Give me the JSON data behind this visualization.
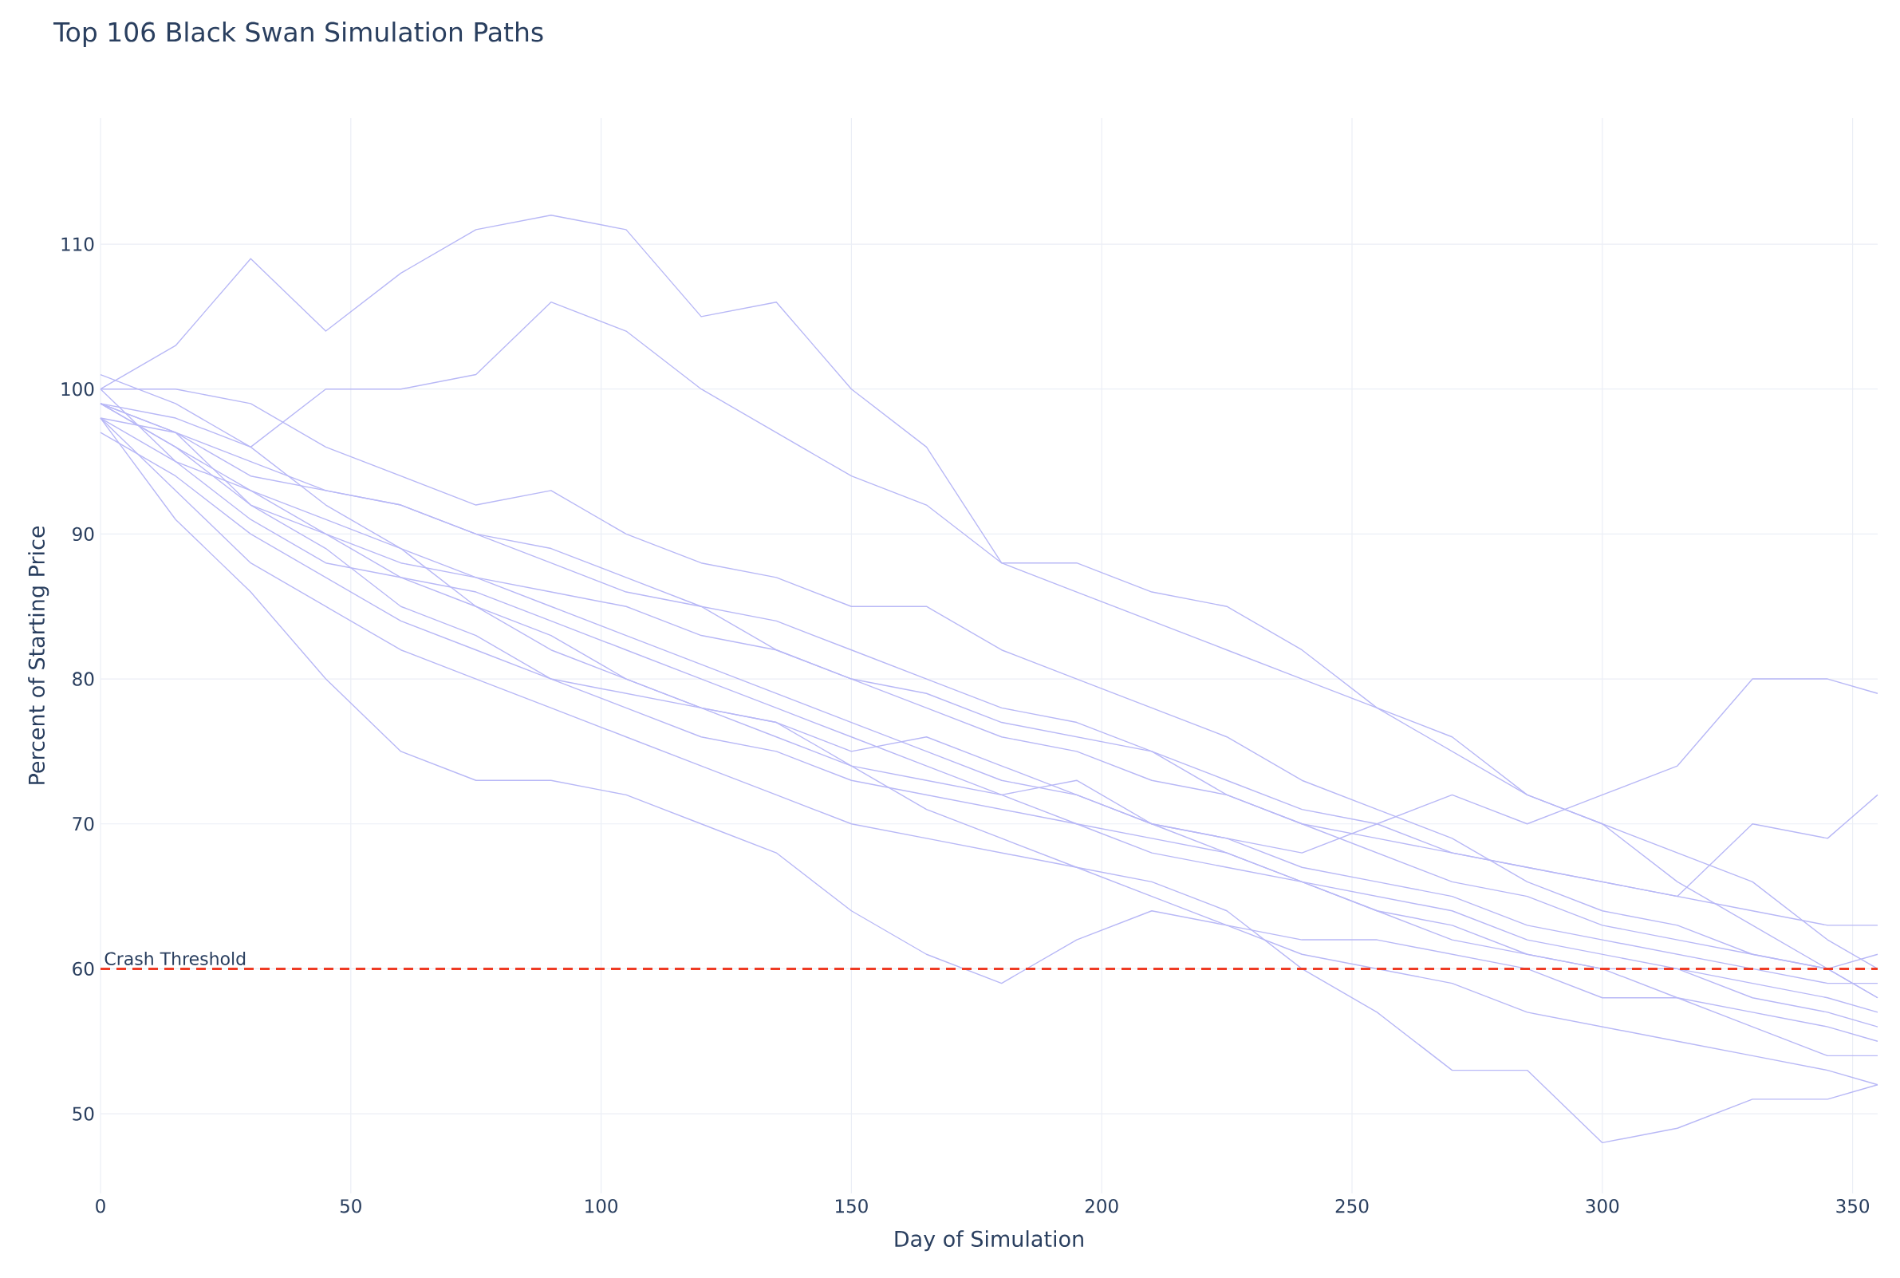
{
  "chart_data": {
    "type": "line",
    "title": "Top 106 Black Swan Simulation Paths",
    "xlabel": "Day of Simulation",
    "ylabel": "Percent of Starting Price",
    "x": [
      0,
      15,
      30,
      45,
      60,
      75,
      90,
      105,
      120,
      135,
      150,
      165,
      180,
      195,
      210,
      225,
      240,
      255,
      270,
      285,
      300,
      315,
      330,
      345,
      355
    ],
    "series": [
      {
        "color": "#b8b8f6",
        "values": [
          100,
          103,
          109,
          104,
          108,
          111,
          112,
          111,
          105,
          106,
          100,
          96,
          88,
          88,
          86,
          85,
          82,
          78,
          76,
          72,
          70,
          66,
          63,
          60,
          58
        ]
      },
      {
        "color": "#b8b8f6",
        "values": [
          99,
          97,
          92,
          90,
          87,
          85,
          83,
          80,
          78,
          76,
          74,
          73,
          72,
          73,
          70,
          69,
          68,
          70,
          72,
          70,
          72,
          74,
          80,
          80,
          79
        ]
      },
      {
        "color": "#b8b8f6",
        "values": [
          98,
          93,
          88,
          85,
          82,
          80,
          78,
          76,
          74,
          72,
          70,
          69,
          68,
          67,
          66,
          64,
          60,
          57,
          53,
          53,
          48,
          49,
          51,
          51,
          52
        ]
      },
      {
        "color": "#b8b8f6",
        "values": [
          98,
          91,
          86,
          80,
          75,
          73,
          73,
          72,
          70,
          68,
          64,
          61,
          59,
          62,
          64,
          63,
          61,
          60,
          59,
          57,
          56,
          55,
          54,
          53,
          52
        ]
      },
      {
        "color": "#b8b8f6",
        "values": [
          99,
          98,
          96,
          100,
          100,
          101,
          106,
          104,
          100,
          97,
          94,
          92,
          88,
          86,
          84,
          82,
          80,
          78,
          75,
          72,
          70,
          68,
          66,
          62,
          60
        ]
      },
      {
        "color": "#b8b8f6",
        "values": [
          99,
          96,
          93,
          91,
          89,
          87,
          85,
          83,
          81,
          79,
          77,
          75,
          73,
          72,
          70,
          69,
          67,
          66,
          65,
          63,
          62,
          61,
          60,
          59,
          59
        ]
      },
      {
        "color": "#b8b8f6",
        "values": [
          100,
          95,
          91,
          88,
          87,
          86,
          84,
          82,
          80,
          78,
          76,
          74,
          72,
          70,
          68,
          67,
          66,
          64,
          62,
          61,
          60,
          58,
          57,
          56,
          55
        ]
      },
      {
        "color": "#b8b8f6",
        "values": [
          98,
          97,
          95,
          93,
          92,
          90,
          89,
          87,
          85,
          84,
          82,
          80,
          78,
          77,
          75,
          73,
          71,
          70,
          68,
          67,
          66,
          65,
          64,
          63,
          63
        ]
      },
      {
        "color": "#b8b8f6",
        "values": [
          101,
          99,
          96,
          92,
          89,
          85,
          82,
          80,
          78,
          77,
          74,
          71,
          69,
          67,
          65,
          63,
          62,
          62,
          61,
          60,
          58,
          58,
          56,
          54,
          54
        ]
      },
      {
        "color": "#b8b8f6",
        "values": [
          99,
          97,
          94,
          93,
          92,
          90,
          88,
          86,
          85,
          82,
          80,
          79,
          77,
          76,
          75,
          72,
          70,
          69,
          68,
          67,
          66,
          65,
          70,
          69,
          72
        ]
      },
      {
        "color": "#b8b8f6",
        "values": [
          97,
          94,
          90,
          87,
          84,
          82,
          80,
          78,
          76,
          75,
          73,
          72,
          71,
          70,
          69,
          68,
          66,
          64,
          63,
          61,
          60,
          60,
          59,
          58,
          57
        ]
      },
      {
        "color": "#b8b8f6",
        "values": [
          100,
          100,
          99,
          96,
          94,
          92,
          93,
          90,
          88,
          87,
          85,
          85,
          82,
          80,
          78,
          76,
          73,
          71,
          69,
          66,
          64,
          63,
          61,
          60,
          61
        ]
      },
      {
        "color": "#b8b8f6",
        "values": [
          99,
          96,
          92,
          89,
          85,
          83,
          80,
          79,
          78,
          77,
          75,
          76,
          74,
          72,
          70,
          68,
          66,
          65,
          64,
          62,
          61,
          60,
          58,
          57,
          56
        ]
      },
      {
        "color": "#b8b8f6",
        "values": [
          98,
          95,
          93,
          90,
          88,
          87,
          86,
          85,
          83,
          82,
          80,
          78,
          76,
          75,
          73,
          72,
          70,
          68,
          66,
          65,
          63,
          62,
          61,
          60,
          58
        ]
      }
    ],
    "xlim": [
      0,
      355
    ],
    "xticks": [
      0,
      50,
      100,
      150,
      200,
      250,
      300,
      350
    ],
    "ylim": [
      44.5,
      118.7
    ],
    "yticks": [
      50,
      60,
      70,
      80,
      90,
      100,
      110
    ],
    "ref_lines": [
      {
        "axis": "y",
        "value": 60,
        "label": "Crash Threshold",
        "color": "#ef3b24",
        "line_style": "dashed"
      }
    ],
    "grid": true,
    "marker": "none",
    "line_style": "solid"
  }
}
